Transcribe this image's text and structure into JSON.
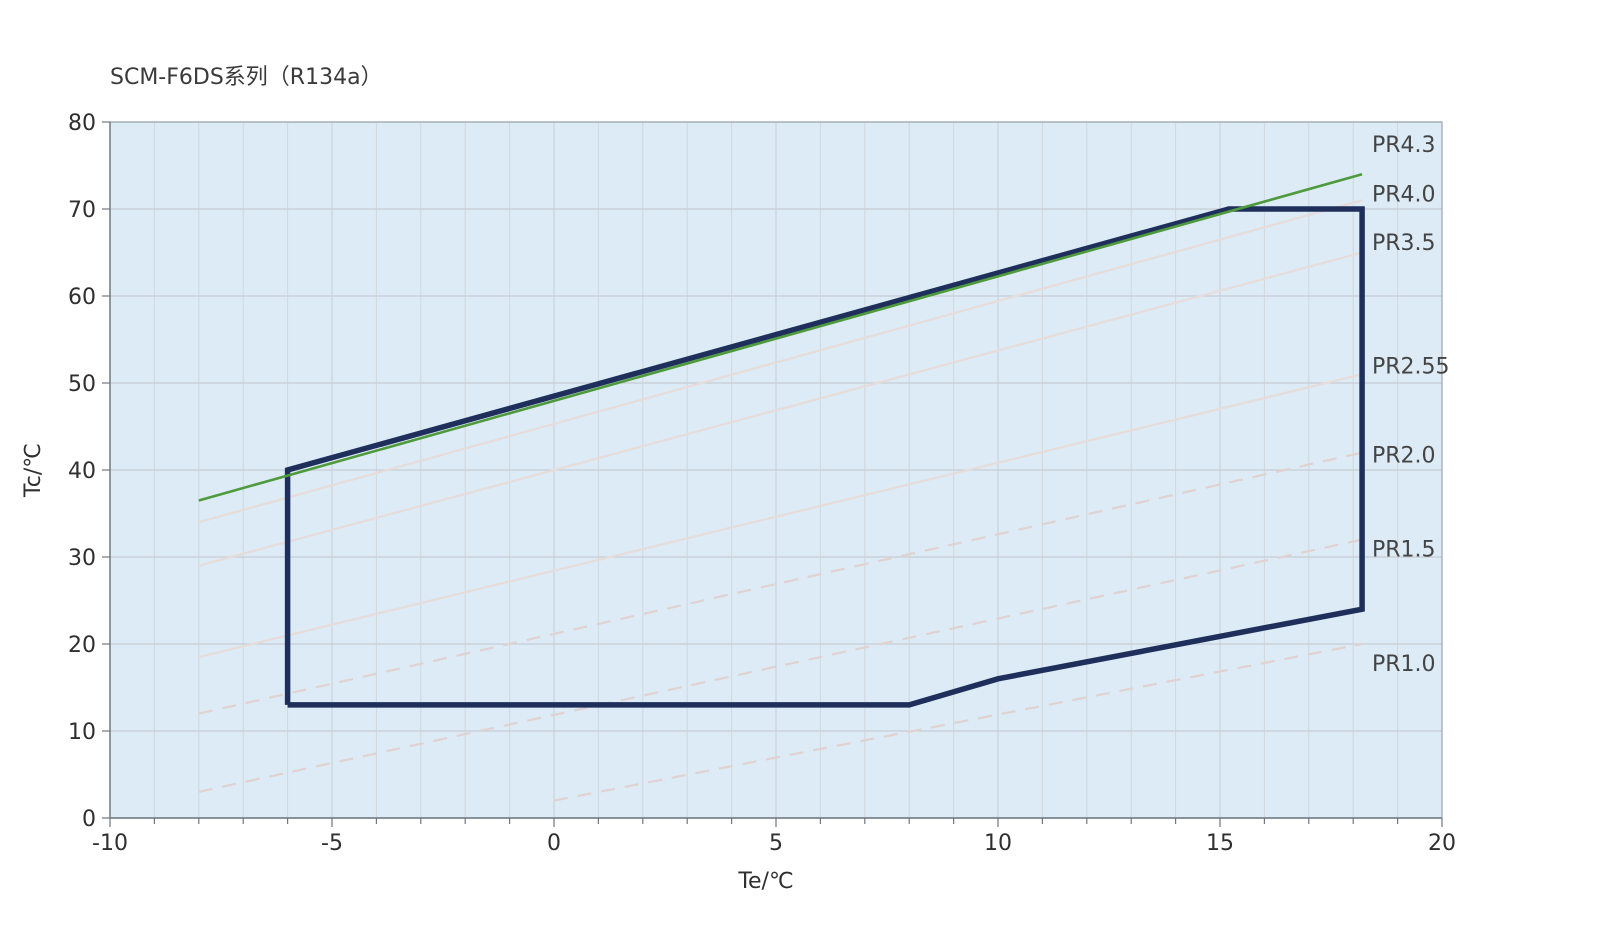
{
  "chart_data": {
    "type": "line",
    "title": "SCM-F6DS系列（R134a）",
    "xlabel": "Te/℃",
    "ylabel": "Tc/℃",
    "xlim": [
      -10,
      20
    ],
    "ylim": [
      0,
      80
    ],
    "x_ticks": [
      -10,
      -5,
      0,
      5,
      10,
      15,
      20
    ],
    "y_ticks": [
      0,
      10,
      20,
      30,
      40,
      50,
      60,
      70,
      80
    ],
    "grid": true,
    "colors": {
      "plot_background": "#dcebf5",
      "envelope": "#1e2f5c",
      "pr_limit_line": "#4e9a3c",
      "pr_line": "#e6dcda",
      "pr_line_dashed": "#e0d2d0",
      "grid": "#c7cdd3"
    },
    "envelope": {
      "points": [
        {
          "x": -6,
          "y": 13
        },
        {
          "x": -6,
          "y": 40
        },
        {
          "x": 15.2,
          "y": 70
        },
        {
          "x": 18.2,
          "y": 70
        },
        {
          "x": 18.2,
          "y": 24
        },
        {
          "x": 10,
          "y": 16
        },
        {
          "x": 8,
          "y": 13
        },
        {
          "x": -6,
          "y": 13
        }
      ]
    },
    "series": [
      {
        "name": "PR4.3",
        "style": "solid",
        "color_key": "pr_limit_line",
        "points": [
          {
            "x": -8,
            "y": 36.5
          },
          {
            "x": 18.2,
            "y": 74
          }
        ]
      },
      {
        "name": "PR4.0",
        "style": "solid",
        "color_key": "pr_line",
        "points": [
          {
            "x": -8,
            "y": 34
          },
          {
            "x": 18.2,
            "y": 71
          }
        ]
      },
      {
        "name": "PR3.5",
        "style": "solid",
        "color_key": "pr_line",
        "points": [
          {
            "x": -8,
            "y": 29
          },
          {
            "x": 18.2,
            "y": 65
          }
        ]
      },
      {
        "name": "PR2.55",
        "style": "solid",
        "color_key": "pr_line",
        "points": [
          {
            "x": -8,
            "y": 18.5
          },
          {
            "x": 18.2,
            "y": 51
          }
        ]
      },
      {
        "name": "PR2.0",
        "style": "dashed",
        "color_key": "pr_line_dashed",
        "points": [
          {
            "x": -8,
            "y": 12
          },
          {
            "x": 18.2,
            "y": 42
          }
        ]
      },
      {
        "name": "PR1.5",
        "style": "dashed",
        "color_key": "pr_line_dashed",
        "points": [
          {
            "x": -8,
            "y": 3
          },
          {
            "x": 18.2,
            "y": 32
          }
        ]
      },
      {
        "name": "PR1.0",
        "style": "dashed",
        "color_key": "pr_line_dashed",
        "points": [
          {
            "x": 0,
            "y": 2
          },
          {
            "x": 18.2,
            "y": 20
          }
        ]
      }
    ],
    "series_labels": [
      {
        "name": "PR4.3",
        "y": 77.5
      },
      {
        "name": "PR4.0",
        "y": 71.8
      },
      {
        "name": "PR3.5",
        "y": 66.2
      },
      {
        "name": "PR2.55",
        "y": 52
      },
      {
        "name": "PR2.0",
        "y": 41.8
      },
      {
        "name": "PR1.5",
        "y": 31
      },
      {
        "name": "PR1.0",
        "y": 17.8
      }
    ]
  }
}
